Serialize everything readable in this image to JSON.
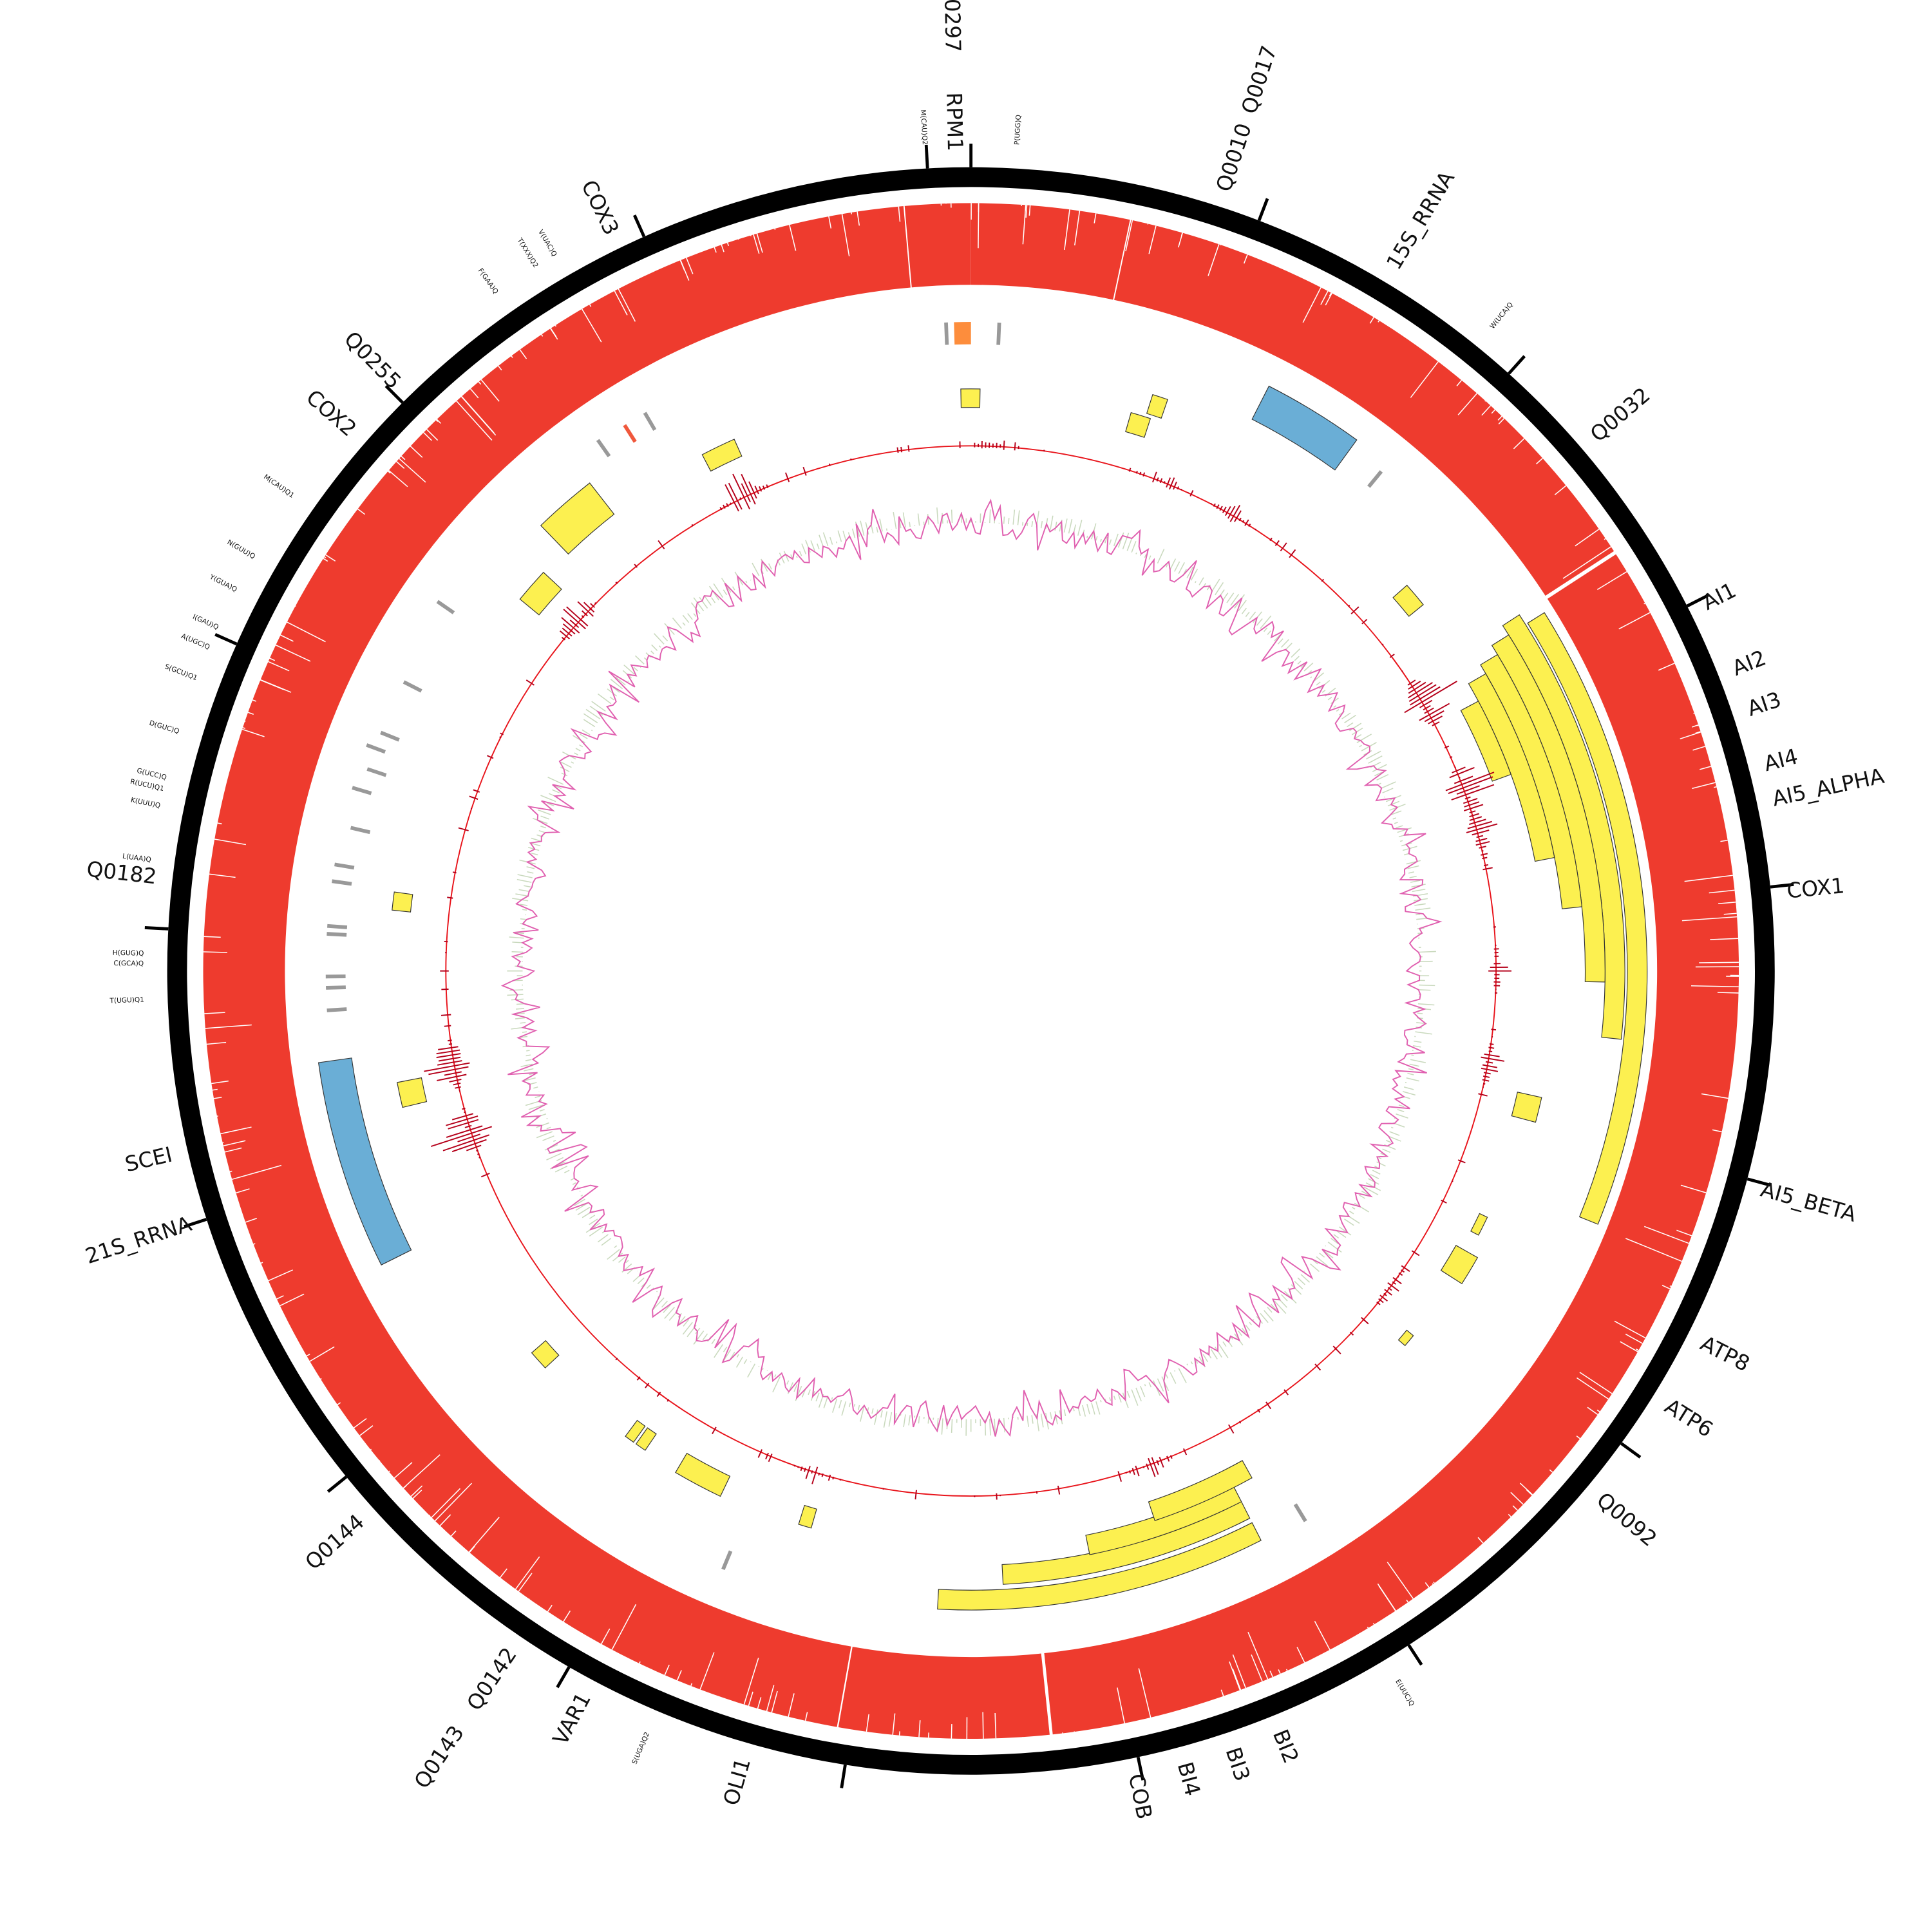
{
  "gene_labels": [
    "RPM1",
    "Q0297",
    "Q0010",
    "Q0017",
    "15S_RRNA",
    "Q0032",
    "AI1",
    "AI2",
    "AI3",
    "AI4",
    "AI5_ALPHA",
    "COX1",
    "AI5_BETA",
    "ATP8",
    "ATP6",
    "Q0092",
    "BI2",
    "BI3",
    "BI4",
    "COB",
    "OLI1",
    "VAR1",
    "Q0142",
    "Q0143",
    "Q0144",
    "21S_RRNA",
    "SCEI",
    "Q0182",
    "COX2",
    "Q0255",
    "COX3"
  ],
  "trna_labels": [
    "M(CAU)Q2",
    "P(UGG)Q",
    "W(UCA)Q",
    "E(UUC)Q",
    "S(UGA)Q2",
    "T(UGU)Q1",
    "C(GCA)Q",
    "H(GUG)Q",
    "L(UAA)Q",
    "K(UUU)Q",
    "R(UCU)Q1",
    "G(UCC)Q",
    "D(GUC)Q",
    "S(GCU)Q1",
    "A(UGC)Q",
    "I(GAU)Q",
    "Y(GUA)Q",
    "N(GUU)Q",
    "M(CAU)Q1",
    "F(GAA)Q",
    "T(XXX)Q2",
    "V(UAC)Q"
  ],
  "colors": {
    "ideogram": "#000000",
    "coverage": "#ee3b2e",
    "intron": "#fcf050",
    "rrna": "#6aaed6",
    "orange_feature": "#fd8d3c",
    "trna_mark": "#999999",
    "spike": "#b5001a",
    "baseline": "#e8141b",
    "gc": "#e060b0",
    "gc_shade": "#c9d9bd"
  }
}
